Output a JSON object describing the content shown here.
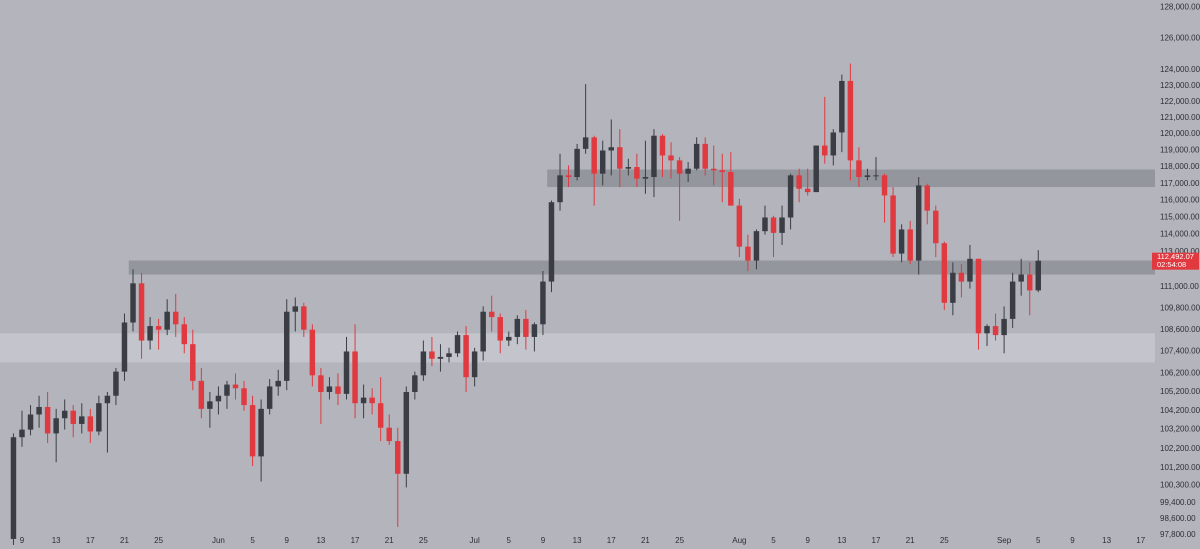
{
  "chart_data": {
    "type": "candlestick",
    "log_y": true,
    "up_color": "#3b3d44",
    "down_color": "#e0393f",
    "zone_dark_color": "#8e9098",
    "zone_light_color": "#c7c8cf",
    "categories": [
      null,
      "9",
      null,
      null,
      null,
      "13",
      null,
      null,
      null,
      "17",
      null,
      null,
      null,
      "21",
      null,
      null,
      null,
      "25",
      null,
      null,
      null,
      null,
      null,
      null,
      "Jun",
      null,
      null,
      null,
      "5",
      null,
      null,
      null,
      "9",
      null,
      null,
      null,
      "13",
      null,
      null,
      null,
      "17",
      null,
      null,
      null,
      "21",
      null,
      null,
      null,
      "25",
      null,
      null,
      null,
      null,
      null,
      "Jul",
      null,
      null,
      null,
      "5",
      null,
      null,
      null,
      "9",
      null,
      null,
      null,
      "13",
      null,
      null,
      null,
      "17",
      null,
      null,
      null,
      "21",
      null,
      null,
      null,
      "25",
      null,
      null,
      null,
      null,
      null,
      null,
      "Aug",
      null,
      null,
      null,
      "5",
      null,
      null,
      null,
      "9",
      null,
      null,
      null,
      "13",
      null,
      null,
      null,
      "17",
      null,
      null,
      null,
      "21",
      null,
      null,
      null,
      "25",
      null,
      null,
      null,
      null,
      null,
      null,
      "Sep",
      null,
      null,
      null,
      "5",
      null,
      null,
      null,
      "9",
      null,
      null,
      null,
      "13",
      null,
      null,
      null,
      "17"
    ],
    "open": [
      97600,
      102800,
      103200,
      104000,
      104400,
      103000,
      103800,
      104200,
      103500,
      103900,
      103100,
      104600,
      105000,
      106300,
      109000,
      111200,
      108000,
      108800,
      108600,
      109600,
      108900,
      107800,
      105800,
      104300,
      104700,
      105000,
      105600,
      105400,
      104500,
      101800,
      104300,
      105500,
      105800,
      109600,
      109900,
      108600,
      106100,
      105200,
      105500,
      105100,
      107400,
      104600,
      104900,
      104600,
      103300,
      102600,
      100900,
      105200,
      106100,
      107400,
      107000,
      107100,
      107300,
      108300,
      106000,
      107400,
      109600,
      109300,
      108000,
      108200,
      109200,
      108200,
      108900,
      111300,
      115900,
      117500,
      117400,
      119100,
      119800,
      117600,
      119000,
      119200,
      117900,
      118000,
      117300,
      117400,
      119900,
      118700,
      118400,
      117600,
      117900,
      119400,
      117900,
      117800,
      117700,
      115700,
      113300,
      112500,
      114200,
      115000,
      114100,
      115000,
      117500,
      116700,
      116500,
      119300,
      118700,
      120100,
      123300,
      118400,
      117400,
      117500,
      117500,
      116300,
      112900,
      114300,
      112500,
      116900,
      115400,
      113500,
      110100,
      111800,
      111300,
      112600,
      108400,
      108800,
      108300,
      109200,
      111300,
      111700,
      110800,
      null,
      null,
      null,
      null,
      null,
      null,
      null,
      null,
      null,
      null,
      null,
      null
    ],
    "high": [
      103000,
      104200,
      104500,
      105000,
      105200,
      104300,
      104800,
      104500,
      104600,
      104300,
      105000,
      105200,
      106500,
      109500,
      112000,
      111800,
      109300,
      109200,
      110300,
      110600,
      109300,
      108600,
      106500,
      105200,
      105500,
      105800,
      106200,
      105800,
      105000,
      104800,
      105900,
      106400,
      110300,
      110400,
      110100,
      108900,
      106500,
      106000,
      106200,
      108200,
      108900,
      105600,
      105400,
      106000,
      104000,
      103300,
      105500,
      106300,
      108000,
      108200,
      107800,
      107600,
      108500,
      108800,
      107600,
      109900,
      110500,
      109500,
      108500,
      109400,
      109700,
      109000,
      111900,
      116000,
      118800,
      118100,
      119400,
      123100,
      119900,
      119600,
      120900,
      120300,
      118500,
      118800,
      119600,
      120300,
      120000,
      119500,
      118600,
      118300,
      119800,
      119800,
      119300,
      118800,
      118900,
      116100,
      114000,
      114300,
      115700,
      115100,
      115700,
      117600,
      117900,
      117900,
      119300,
      122300,
      120300,
      123700,
      124400,
      119200,
      117900,
      118600,
      117600,
      116800,
      114600,
      114800,
      117400,
      117000,
      115700,
      113600,
      112400,
      112300,
      113400,
      112600,
      108900,
      109500,
      109900,
      111800,
      112600,
      112400,
      113100,
      null,
      null,
      null,
      null,
      null,
      null,
      null,
      null,
      null,
      null,
      null,
      null
    ],
    "low": [
      97300,
      102300,
      102900,
      103300,
      102500,
      101500,
      103200,
      102800,
      103000,
      102500,
      102900,
      102000,
      104500,
      105800,
      108500,
      107000,
      107500,
      107500,
      108300,
      108200,
      107300,
      105300,
      103800,
      103300,
      104000,
      104300,
      104800,
      104200,
      101300,
      100500,
      104000,
      105000,
      105300,
      108500,
      108200,
      105500,
      103500,
      104800,
      104500,
      104800,
      103800,
      103800,
      104000,
      102600,
      102400,
      98200,
      100200,
      104800,
      105800,
      106600,
      106300,
      106800,
      107100,
      105200,
      105500,
      106900,
      108500,
      107300,
      107700,
      107800,
      107500,
      107400,
      108300,
      110700,
      115400,
      116800,
      117200,
      118800,
      115700,
      116900,
      117500,
      116800,
      117500,
      116800,
      116400,
      116200,
      117400,
      117300,
      114800,
      117100,
      117800,
      117500,
      116900,
      115900,
      115700,
      112700,
      111900,
      112000,
      114000,
      112700,
      113400,
      114300,
      115900,
      116300,
      116500,
      118200,
      118100,
      118900,
      117200,
      116800,
      117200,
      117200,
      114700,
      112700,
      112400,
      112300,
      111700,
      114600,
      112700,
      109700,
      109400,
      110400,
      110900,
      107500,
      107700,
      108000,
      107300,
      108700,
      110500,
      109400,
      110700,
      null,
      null,
      null,
      null,
      null,
      null,
      null,
      null,
      null,
      null,
      null,
      null
    ],
    "close": [
      102800,
      103200,
      104000,
      104400,
      103000,
      103800,
      104200,
      103500,
      103900,
      103100,
      104600,
      105000,
      106300,
      109000,
      111200,
      108000,
      108800,
      108600,
      109600,
      108900,
      107800,
      105800,
      104300,
      104700,
      105000,
      105600,
      105400,
      104500,
      101800,
      104300,
      105500,
      105800,
      109600,
      109900,
      108600,
      106100,
      105200,
      105500,
      105100,
      107400,
      104600,
      104900,
      104600,
      103300,
      102600,
      100900,
      105200,
      106100,
      107400,
      107000,
      107100,
      107300,
      108300,
      106000,
      107400,
      109600,
      109300,
      108000,
      108200,
      109200,
      108200,
      108900,
      111300,
      115900,
      117500,
      117400,
      119100,
      119800,
      117600,
      119000,
      119200,
      117900,
      118000,
      117300,
      117400,
      119900,
      118700,
      118400,
      117600,
      117900,
      119400,
      117900,
      117800,
      117700,
      115700,
      113300,
      112500,
      114200,
      115000,
      114100,
      115000,
      117500,
      116700,
      116500,
      119300,
      118700,
      120100,
      123300,
      118400,
      117400,
      117500,
      117500,
      116300,
      112900,
      114300,
      112500,
      116900,
      115400,
      113500,
      110100,
      111800,
      111300,
      112600,
      108400,
      108800,
      108300,
      109200,
      111300,
      111700,
      110800,
      112492.07,
      null,
      null,
      null,
      null,
      null,
      null,
      null,
      null,
      null,
      null,
      null,
      null
    ],
    "zones": [
      {
        "low": 116800,
        "high": 117850,
        "from": 63,
        "shade": "dark"
      },
      {
        "low": 111700,
        "high": 112500,
        "from": 14,
        "shade": "dark"
      },
      {
        "low": 106800,
        "high": 108400,
        "from": 0,
        "shade": "light"
      }
    ],
    "ylim": [
      97100,
      128500
    ],
    "yticks": [
      {
        "value": 97800,
        "label": "97,800.00"
      },
      {
        "value": 98600,
        "label": "98,600.00"
      },
      {
        "value": 99400,
        "label": "99,400.00"
      },
      {
        "value": 100300,
        "label": "100,300.00"
      },
      {
        "value": 101200,
        "label": "101,200.00"
      },
      {
        "value": 102200,
        "label": "102,200.00"
      },
      {
        "value": 103200,
        "label": "103,200.00"
      },
      {
        "value": 104200,
        "label": "104,200.00"
      },
      {
        "value": 105200,
        "label": "105,200.00"
      },
      {
        "value": 106200,
        "label": "106,200.00"
      },
      {
        "value": 107400,
        "label": "107,400.00"
      },
      {
        "value": 108600,
        "label": "108,600.00"
      },
      {
        "value": 109800,
        "label": "109,800.00"
      },
      {
        "value": 111000,
        "label": "111,000.00"
      },
      {
        "value": 113000,
        "label": "113,000.00"
      },
      {
        "value": 114000,
        "label": "114,000.00"
      },
      {
        "value": 115000,
        "label": "115,000.00"
      },
      {
        "value": 116000,
        "label": "116,000.00"
      },
      {
        "value": 117000,
        "label": "117,000.00"
      },
      {
        "value": 118000,
        "label": "118,000.00"
      },
      {
        "value": 119000,
        "label": "119,000.00"
      },
      {
        "value": 120000,
        "label": "120,000.00"
      },
      {
        "value": 121000,
        "label": "121,000.00"
      },
      {
        "value": 122000,
        "label": "122,000.00"
      },
      {
        "value": 123000,
        "label": "123,000.00"
      },
      {
        "value": 124000,
        "label": "124,000.00"
      },
      {
        "value": 126000,
        "label": "126,000.00"
      },
      {
        "value": 128000,
        "label": "128,000.00"
      }
    ],
    "last_price": {
      "value": 112492.07,
      "label": "112,492.07"
    },
    "countdown": "02:54:08"
  }
}
